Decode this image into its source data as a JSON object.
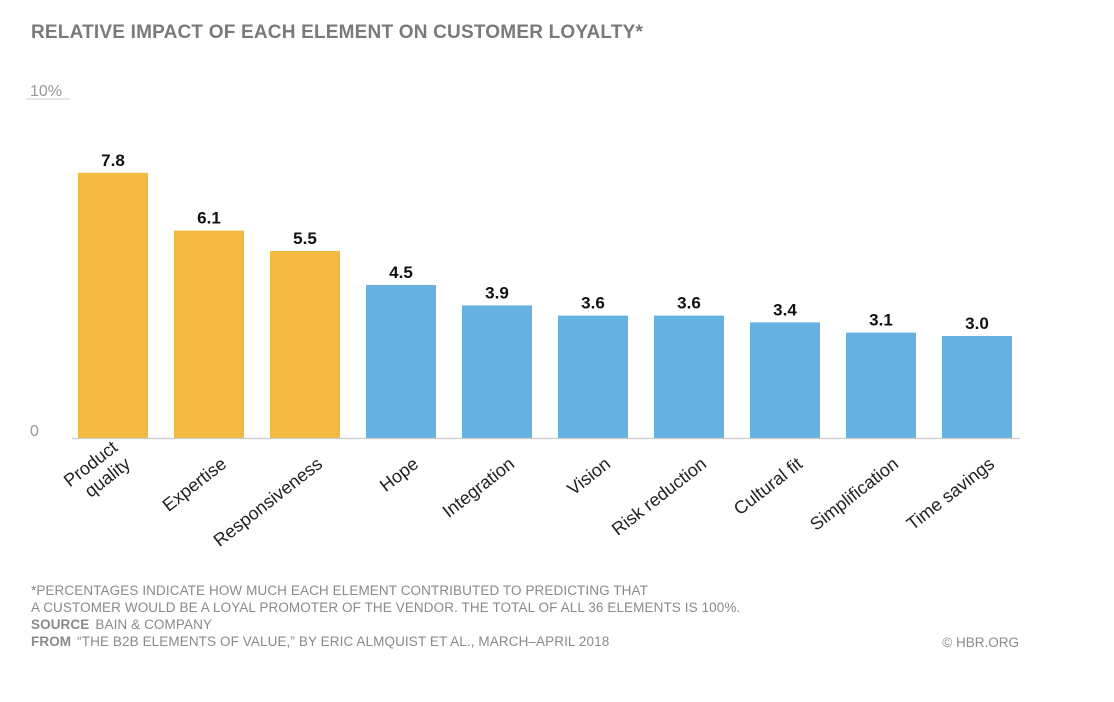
{
  "chart_data": {
    "type": "bar",
    "title": "RELATIVE IMPACT OF EACH ELEMENT ON CUSTOMER LOYALTY*",
    "xlabel": "",
    "ylabel": "",
    "ylim": [
      0,
      10
    ],
    "ytick_labels": [
      "0",
      "10%"
    ],
    "categories": [
      "Product quality",
      "Expertise",
      "Responsiveness",
      "Hope",
      "Integration",
      "Vision",
      "Risk reduction",
      "Cultural fit",
      "Simplification",
      "Time savings"
    ],
    "category_lines": [
      [
        "Product",
        "quality"
      ],
      [
        "Expertise"
      ],
      [
        "Responsiveness"
      ],
      [
        "Hope"
      ],
      [
        "Integration"
      ],
      [
        "Vision"
      ],
      [
        "Risk reduction"
      ],
      [
        "Cultural fit"
      ],
      [
        "Simplification"
      ],
      [
        "Time savings"
      ]
    ],
    "values": [
      7.8,
      6.1,
      5.5,
      4.5,
      3.9,
      3.6,
      3.6,
      3.4,
      3.1,
      3.0
    ],
    "value_labels": [
      "7.8",
      "6.1",
      "5.5",
      "4.5",
      "3.9",
      "3.6",
      "3.6",
      "3.4",
      "3.1",
      "3.0"
    ],
    "highlight_count": 3,
    "colors": {
      "highlight": "#f3b941",
      "default": "#65b1e2",
      "axis": "#cccccc",
      "label": "#555555"
    }
  },
  "footer": {
    "note_line1": "*PERCENTAGES INDICATE HOW MUCH EACH ELEMENT CONTRIBUTED TO PREDICTING THAT",
    "note_line2": "A CUSTOMER WOULD BE A LOYAL PROMOTER OF THE VENDOR. THE TOTAL OF ALL 36 ELEMENTS IS 100%.",
    "source_label": "SOURCE",
    "source_value": "BAIN & COMPANY",
    "from_label": "FROM",
    "from_value": "“THE B2B ELEMENTS OF VALUE,” BY ERIC ALMQUIST ET AL., MARCH–APRIL 2018",
    "copyright": "© HBR.ORG"
  }
}
